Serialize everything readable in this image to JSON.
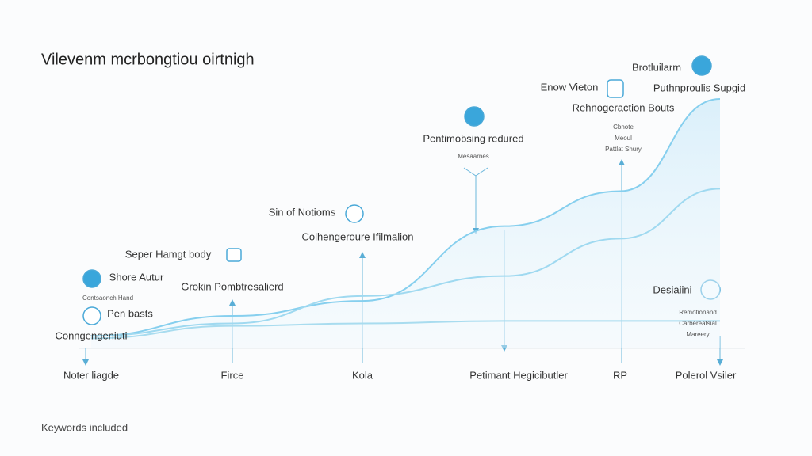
{
  "chart_data": {
    "type": "line",
    "title": "Vilevenm mcrbongtiou oirtnigh",
    "footer": "Keywords included",
    "categories": [
      "Noter liagde",
      "Firce",
      "Kola",
      "Petimant Hegicibutler",
      "RP",
      "Polerol Vsiler"
    ],
    "series": [
      {
        "name": null,
        "color": "#86cfee",
        "values": [
          5,
          13,
          19,
          49,
          63,
          100
        ]
      },
      {
        "name": null,
        "color": "#9fd9f0",
        "values": [
          5,
          10,
          21,
          29,
          44,
          64
        ]
      },
      {
        "name": null,
        "color": "#a8dcef",
        "values": [
          4,
          9,
          10,
          11,
          11,
          11
        ]
      }
    ],
    "ylim": [
      0,
      100
    ],
    "annotations": [
      "Brotluilarm",
      "Enow Vieton",
      "Puthnproulis Supgid",
      "Rehnogeraction Bouts",
      "Cbnote",
      "Meoul",
      "Pattlat Shury",
      "Pentimobsing redured",
      "Mesaarnes",
      "Sin of Notioms",
      "Colhengeroure Ifilmalion",
      "Seper Hamgt body",
      "Shore Autur",
      "Grokin Pombtresalierd",
      "Contsaonch Hand",
      "Pen basts",
      "Conngengeniuti",
      "Desiaiini",
      "Remotionand",
      "Carbereatsial",
      "Mareery"
    ]
  }
}
